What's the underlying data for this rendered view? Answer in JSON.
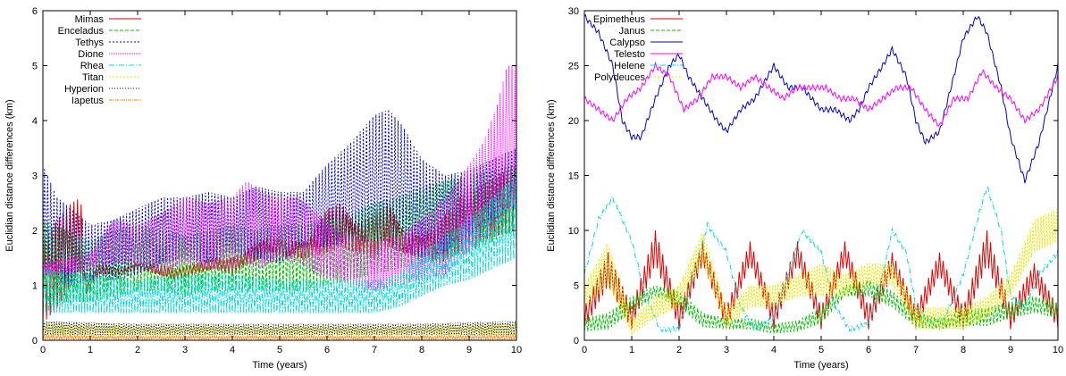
{
  "chart_data": [
    {
      "type": "line",
      "xlabel": "Time (years)",
      "ylabel": "Euclidian distance differences (km)",
      "xlim": [
        0,
        10
      ],
      "ylim": [
        0,
        6
      ],
      "xticks": [
        "0",
        "1",
        "2",
        "3",
        "4",
        "5",
        "6",
        "7",
        "8",
        "9",
        "10"
      ],
      "yticks": [
        "0",
        "1",
        "2",
        "3",
        "4",
        "5",
        "6"
      ],
      "legend_position": "top-left",
      "grid": false,
      "series": [
        {
          "name": "Mimas",
          "color": "#e00000",
          "dash": "",
          "x": [
            0,
            0.3,
            0.6,
            0.8,
            0.9,
            1.2,
            1.6,
            2.0,
            2.4,
            2.8,
            3.2,
            3.6,
            4.0,
            4.4,
            4.8,
            5.2,
            5.6,
            6.0,
            6.3,
            6.6,
            7.0,
            7.3,
            7.6,
            8.0,
            8.4,
            8.8,
            9.2,
            9.6,
            10
          ],
          "low": [
            0.3,
            0.6,
            1.0,
            1.3,
            0.8,
            1.2,
            1.2,
            1.3,
            1.2,
            1.1,
            1.2,
            1.3,
            1.2,
            1.4,
            1.6,
            1.5,
            1.5,
            1.6,
            1.7,
            1.6,
            1.5,
            1.7,
            1.6,
            1.5,
            1.4,
            1.6,
            1.8,
            1.9,
            2.0
          ],
          "high": [
            1.8,
            2.2,
            2.5,
            2.6,
            1.0,
            1.4,
            1.3,
            1.4,
            1.4,
            1.3,
            1.4,
            1.5,
            1.5,
            1.7,
            1.9,
            1.8,
            1.8,
            2.4,
            2.5,
            2.1,
            2.3,
            2.5,
            2.0,
            1.9,
            2.2,
            2.6,
            2.8,
            3.0,
            3.2
          ]
        },
        {
          "name": "Enceladus",
          "color": "#00c000",
          "dash": "4,2",
          "x": [
            0,
            0.5,
            1.0,
            1.5,
            2.0,
            2.5,
            3.0,
            3.5,
            4.0,
            4.5,
            5.0,
            5.5,
            6.0,
            6.5,
            7.0,
            7.5,
            8.0,
            8.5,
            9.0,
            9.5,
            10
          ],
          "low": [
            0.6,
            0.7,
            0.7,
            0.8,
            0.9,
            0.9,
            0.8,
            0.9,
            0.9,
            0.9,
            0.9,
            0.9,
            1.0,
            1.1,
            1.2,
            1.3,
            1.4,
            1.5,
            1.6,
            1.8,
            2.0
          ],
          "high": [
            2.2,
            2.0,
            1.8,
            2.0,
            2.1,
            2.0,
            1.9,
            2.0,
            2.1,
            2.0,
            2.1,
            2.1,
            2.2,
            2.3,
            2.5,
            2.6,
            2.8,
            2.9,
            3.0,
            3.1,
            3.2
          ]
        },
        {
          "name": "Tethys",
          "color": "#0000cc",
          "dash": "2,2",
          "x": [
            0,
            0.3,
            0.6,
            1.0,
            1.5,
            2.0,
            2.5,
            3.0,
            3.5,
            4.0,
            4.5,
            5.0,
            5.5,
            6.0,
            6.5,
            7.0,
            7.3,
            7.6,
            8.0,
            8.5,
            9.0,
            9.5,
            10
          ],
          "low": [
            1.2,
            1.1,
            1.0,
            1.1,
            1.1,
            1.2,
            1.4,
            1.5,
            1.4,
            1.6,
            1.5,
            1.4,
            1.7,
            1.7,
            1.8,
            1.8,
            1.8,
            1.6,
            1.5,
            1.6,
            1.9,
            2.2,
            2.4
          ],
          "high": [
            3.2,
            2.6,
            2.4,
            2.1,
            2.2,
            2.4,
            2.6,
            2.6,
            2.7,
            2.6,
            2.8,
            2.7,
            2.7,
            3.2,
            3.6,
            4.1,
            4.2,
            3.9,
            3.3,
            3.0,
            3.1,
            3.3,
            3.5
          ]
        },
        {
          "name": "Dione",
          "color": "#ff00ff",
          "dash": "1,1",
          "x": [
            0,
            0.5,
            1.0,
            1.5,
            2.0,
            2.5,
            3.0,
            3.5,
            4.0,
            4.3,
            4.6,
            5.0,
            5.4,
            5.8,
            6.2,
            6.6,
            7.0,
            7.5,
            8.0,
            8.5,
            9.0,
            9.3,
            9.6,
            9.8,
            10
          ],
          "low": [
            1.2,
            1.2,
            1.3,
            1.4,
            1.4,
            1.2,
            1.4,
            1.3,
            1.3,
            1.4,
            1.3,
            1.5,
            1.4,
            1.2,
            1.1,
            1.0,
            0.9,
            1.0,
            1.1,
            1.2,
            1.6,
            1.8,
            2.1,
            2.4,
            2.5
          ],
          "high": [
            1.4,
            1.5,
            1.6,
            2.2,
            2.1,
            2.3,
            2.6,
            2.5,
            2.6,
            2.9,
            2.7,
            2.6,
            2.6,
            2.3,
            2.0,
            1.9,
            1.8,
            1.9,
            2.2,
            2.6,
            3.2,
            3.6,
            4.3,
            5.0,
            5.0
          ]
        },
        {
          "name": "Rhea",
          "color": "#00d8d8",
          "dash": "6,2,1,2",
          "x": [
            0,
            1,
            2,
            3,
            4,
            5,
            6,
            7,
            7.5,
            8,
            8.5,
            9,
            9.5,
            10
          ],
          "low": [
            0.5,
            0.5,
            0.5,
            0.5,
            0.5,
            0.5,
            0.5,
            0.5,
            0.6,
            0.8,
            1.0,
            1.1,
            1.3,
            1.5
          ],
          "high": [
            1.3,
            1.2,
            1.1,
            1.2,
            1.2,
            1.1,
            1.1,
            1.1,
            1.2,
            1.6,
            1.9,
            2.2,
            2.6,
            3.0
          ]
        },
        {
          "name": "Titan",
          "color": "#e8e800",
          "dash": "2,2",
          "x": [
            0,
            2,
            4,
            6,
            8,
            10
          ],
          "low": [
            0.1,
            0.1,
            0.1,
            0.1,
            0.1,
            0.1
          ],
          "high": [
            0.3,
            0.25,
            0.25,
            0.25,
            0.25,
            0.3
          ]
        },
        {
          "name": "Hyperion",
          "color": "#000000",
          "dash": "1,2",
          "x": [
            0,
            2,
            4,
            6,
            8,
            10
          ],
          "low": [
            0.1,
            0.1,
            0.1,
            0.1,
            0.1,
            0.1
          ],
          "high": [
            0.35,
            0.3,
            0.3,
            0.3,
            0.3,
            0.35
          ]
        },
        {
          "name": "Iapetus",
          "color": "#ff8000",
          "dash": "4,1,1,1",
          "x": [
            0,
            2,
            4,
            6,
            8,
            10
          ],
          "low": [
            0.02,
            0.02,
            0.02,
            0.02,
            0.02,
            0.02
          ],
          "high": [
            0.1,
            0.08,
            0.08,
            0.08,
            0.08,
            0.1
          ]
        }
      ]
    },
    {
      "type": "line",
      "xlabel": "Time (years)",
      "ylabel": "Euclidian distance differences (km)",
      "xlim": [
        0,
        10
      ],
      "ylim": [
        0,
        30
      ],
      "xticks": [
        "0",
        "1",
        "2",
        "3",
        "4",
        "5",
        "6",
        "7",
        "8",
        "9",
        "10"
      ],
      "yticks": [
        "0",
        "5",
        "10",
        "15",
        "20",
        "25",
        "30"
      ],
      "legend_position": "top-left",
      "grid": false,
      "series": [
        {
          "name": "Epimetheus",
          "color": "#e00000",
          "dash": "",
          "x": [
            0,
            0.5,
            1.0,
            1.5,
            2.0,
            2.5,
            3.0,
            3.5,
            4.0,
            4.5,
            5.0,
            5.5,
            6.0,
            6.5,
            7.0,
            7.5,
            8.0,
            8.5,
            9.0,
            9.5,
            10
          ],
          "low": [
            1,
            5,
            1,
            7,
            1,
            7,
            1,
            7,
            1,
            7,
            1,
            7,
            1,
            6,
            1,
            6,
            1,
            7,
            1,
            5,
            1
          ],
          "high": [
            3,
            8,
            3,
            10,
            3,
            9,
            3,
            9,
            3,
            9,
            3,
            9,
            3,
            8,
            3,
            8,
            3,
            10,
            3,
            7,
            3
          ]
        },
        {
          "name": "Janus",
          "color": "#00c000",
          "dash": "4,2",
          "x": [
            0,
            0.5,
            1.0,
            1.5,
            2.0,
            2.5,
            3.0,
            3.5,
            4.0,
            4.5,
            5.0,
            5.5,
            6.0,
            6.5,
            7.0,
            7.5,
            8.0,
            8.5,
            9.0,
            9.5,
            10
          ],
          "low": [
            0.8,
            1.0,
            2.5,
            4.0,
            3.0,
            1.2,
            1.0,
            1.0,
            0.6,
            0.8,
            1.5,
            4.0,
            4.0,
            3.0,
            1.2,
            1.0,
            1.3,
            1.3,
            2.0,
            2.5,
            2.0
          ],
          "high": [
            2.0,
            2.5,
            4.0,
            5.0,
            4.5,
            2.5,
            2.0,
            2.0,
            1.5,
            1.8,
            3.0,
            5.0,
            5.5,
            4.5,
            2.5,
            2.0,
            2.8,
            3.0,
            3.5,
            4.0,
            3.5
          ]
        },
        {
          "name": "Calypso",
          "color": "#0000cc",
          "x": [
            0,
            0.3,
            0.6,
            0.8,
            1.0,
            1.2,
            1.5,
            1.8,
            2.0,
            2.2,
            2.5,
            2.8,
            3.0,
            3.3,
            3.6,
            4.0,
            4.3,
            4.6,
            5.0,
            5.3,
            5.6,
            5.8,
            6.0,
            6.3,
            6.5,
            6.8,
            7.0,
            7.2,
            7.5,
            7.8,
            8.0,
            8.3,
            8.5,
            8.8,
            9.0,
            9.3,
            9.6,
            10
          ],
          "values": [
            29.5,
            28,
            25,
            20,
            18.5,
            18.5,
            22,
            25,
            26,
            24,
            22,
            20,
            19,
            21,
            22,
            25,
            23,
            23,
            21,
            21,
            20,
            21,
            23,
            25,
            26.5,
            24,
            20,
            18,
            19,
            24,
            27.5,
            29.5,
            28,
            23,
            18.5,
            14.5,
            18,
            25
          ]
        },
        {
          "name": "Telesto",
          "color": "#ff00ff",
          "x": [
            0,
            0.3,
            0.6,
            0.9,
            1.2,
            1.5,
            1.8,
            2.1,
            2.4,
            2.7,
            3.0,
            3.3,
            3.6,
            3.9,
            4.2,
            4.5,
            4.8,
            5.1,
            5.4,
            5.7,
            6.0,
            6.3,
            6.6,
            6.9,
            7.2,
            7.5,
            7.8,
            8.1,
            8.4,
            8.7,
            9.0,
            9.3,
            9.6,
            10
          ],
          "values": [
            22,
            21,
            20,
            22,
            23,
            25,
            24,
            21,
            22,
            24,
            24,
            23,
            24,
            23,
            22,
            23,
            23,
            23,
            22,
            22,
            21,
            22,
            23,
            23,
            21,
            19.5,
            22,
            22,
            24.5,
            23,
            22,
            20,
            21,
            24
          ]
        },
        {
          "name": "Helene",
          "color": "#00d8d8",
          "dash": "6,2,1,2",
          "x": [
            0,
            0.3,
            0.6,
            1.0,
            1.3,
            1.6,
            2.0,
            2.3,
            2.6,
            3.0,
            3.3,
            3.6,
            4.0,
            4.3,
            4.6,
            5.0,
            5.3,
            5.6,
            6.0,
            6.3,
            6.5,
            6.8,
            7.0,
            7.3,
            7.6,
            8.0,
            8.3,
            8.5,
            8.8,
            9.0,
            9.3,
            9.6,
            10
          ],
          "values": [
            6,
            11,
            13,
            9,
            4,
            1,
            1,
            6,
            10.5,
            8,
            3,
            1,
            2,
            6,
            10,
            8,
            3,
            1,
            1.5,
            6,
            10,
            8,
            3,
            1.5,
            2,
            6,
            11,
            14,
            10,
            4,
            3,
            6,
            8
          ]
        },
        {
          "name": "Polydeuces",
          "color": "#e8e800",
          "dash": "2,2",
          "x": [
            0,
            0.5,
            1.0,
            1.5,
            2.0,
            2.5,
            3.0,
            3.5,
            4.0,
            4.5,
            5.0,
            5.5,
            6.0,
            6.5,
            7.0,
            7.5,
            8.0,
            8.5,
            9.0,
            9.5,
            10
          ],
          "low": [
            3,
            5,
            0.5,
            2,
            3,
            7,
            1,
            3,
            3,
            4,
            4,
            4,
            5,
            5,
            1,
            1,
            1,
            2,
            4,
            8,
            9
          ],
          "high": [
            5,
            9,
            2,
            4,
            5,
            10,
            3,
            5,
            5,
            6,
            7,
            6,
            7,
            7,
            3,
            3,
            3,
            4,
            6,
            11,
            12
          ]
        }
      ]
    }
  ]
}
